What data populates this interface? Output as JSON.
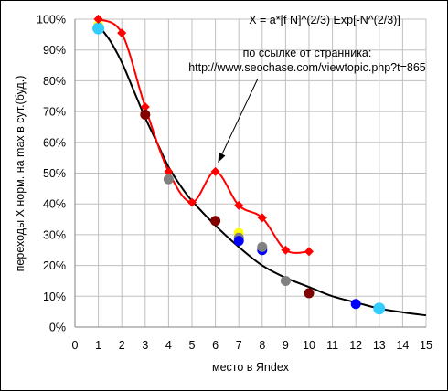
{
  "chart_data": {
    "type": "scatter",
    "title": "",
    "formula": "X = a*[f N]^(2/3) Exp[-N^(2/3)]",
    "annotation_line1": "по ссылке от странника:",
    "annotation_line2": "http://www.seochase.com/viewtopic.php?t=865",
    "xlabel": "место в Яndex",
    "ylabel": "переходы X норм. на max в сут.(буд.)",
    "xlim": [
      0,
      15
    ],
    "ylim": [
      0,
      100
    ],
    "x_ticks": [
      "0",
      "1",
      "2",
      "3",
      "4",
      "5",
      "6",
      "7",
      "8",
      "9",
      "10",
      "11",
      "12",
      "13",
      "14",
      "15"
    ],
    "y_ticks": [
      "0%",
      "10%",
      "20%",
      "30%",
      "40%",
      "50%",
      "60%",
      "70%",
      "80%",
      "90%",
      "100%"
    ],
    "grid": true,
    "colors": {
      "fit": "#000000",
      "red_series": "#ff0000",
      "yellow": "#ffff00",
      "cyan": "#33ccff",
      "dark_red": "#800000",
      "gray": "#808080",
      "blue": "#0000ff"
    },
    "fit_curve": {
      "x": [
        1,
        1.5,
        2,
        2.5,
        3,
        3.5,
        4,
        4.5,
        5,
        6,
        7,
        8,
        9,
        10,
        11,
        12,
        13,
        14,
        15
      ],
      "y": [
        98,
        93,
        86,
        77,
        68,
        60,
        52,
        46,
        41,
        33,
        26,
        20,
        16,
        13,
        10,
        8,
        6,
        4.8,
        3.8
      ]
    },
    "red_series": {
      "x": [
        1,
        2,
        3,
        4,
        5,
        6,
        7,
        8,
        9,
        10
      ],
      "y": [
        100,
        95.5,
        71.5,
        50.5,
        40.5,
        50.5,
        39.5,
        35.5,
        25,
        24.5
      ]
    },
    "points": [
      {
        "x": 1,
        "y": 98,
        "color": "yellow"
      },
      {
        "x": 1,
        "y": 97,
        "color": "cyan"
      },
      {
        "x": 3,
        "y": 69,
        "color": "dark_red"
      },
      {
        "x": 4,
        "y": 48,
        "color": "gray"
      },
      {
        "x": 6,
        "y": 34.5,
        "color": "dark_red"
      },
      {
        "x": 7,
        "y": 30.5,
        "color": "yellow"
      },
      {
        "x": 7,
        "y": 29,
        "color": "gray"
      },
      {
        "x": 7,
        "y": 28,
        "color": "blue"
      },
      {
        "x": 8,
        "y": 25,
        "color": "blue"
      },
      {
        "x": 8,
        "y": 26,
        "color": "gray"
      },
      {
        "x": 9,
        "y": 15,
        "color": "gray"
      },
      {
        "x": 10,
        "y": 11,
        "color": "dark_red"
      },
      {
        "x": 12,
        "y": 7.5,
        "color": "blue"
      },
      {
        "x": 13,
        "y": 6,
        "color": "cyan"
      }
    ],
    "arrow_target": {
      "x": 6,
      "y": 52
    }
  }
}
